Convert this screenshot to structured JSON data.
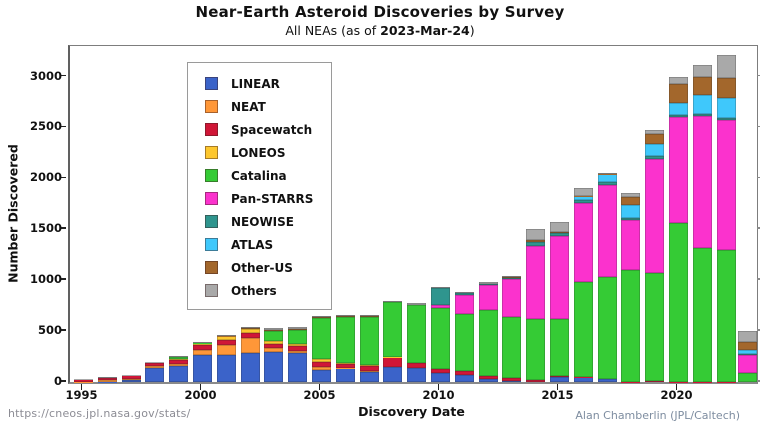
{
  "header": {
    "title": "Near-Earth Asteroid Discoveries by Survey",
    "subtitle_prefix": "All NEAs (as of ",
    "subtitle_date": "2023-Mar-24",
    "subtitle_suffix": ")"
  },
  "footer": {
    "source_url": "https://cneos.jpl.nasa.gov/stats/",
    "credit": "Alan Chamberlin (JPL/Caltech)"
  },
  "chart_data": {
    "type": "bar",
    "stacked": true,
    "title": "Near-Earth Asteroid Discoveries by Survey",
    "subtitle": "All NEAs (as of 2023-Mar-24)",
    "xlabel": "Discovery Date",
    "ylabel": "Number Discovered",
    "grid": false,
    "legend_position": "upper-left-inside",
    "ylim": [
      0,
      3300
    ],
    "yticks": [
      0,
      500,
      1000,
      1500,
      2000,
      2500,
      3000
    ],
    "xticks": [
      1995,
      2000,
      2005,
      2010,
      2015,
      2020
    ],
    "categories": [
      1995,
      1996,
      1997,
      1998,
      1999,
      2000,
      2001,
      2002,
      2003,
      2004,
      2005,
      2006,
      2007,
      2008,
      2009,
      2010,
      2011,
      2012,
      2013,
      2014,
      2015,
      2016,
      2017,
      2018,
      2019,
      2020,
      2021,
      2022,
      2023
    ],
    "series": [
      {
        "name": "LINEAR",
        "color": "#3b63c9",
        "values": [
          0,
          5,
          18,
          135,
          155,
          270,
          270,
          285,
          290,
          285,
          120,
          135,
          100,
          150,
          135,
          90,
          70,
          30,
          10,
          0,
          45,
          45,
          25,
          0,
          0,
          0,
          0,
          0,
          0
        ]
      },
      {
        "name": "NEAT",
        "color": "#ff9738",
        "values": [
          3,
          10,
          15,
          20,
          22,
          45,
          95,
          145,
          40,
          20,
          25,
          5,
          10,
          0,
          0,
          0,
          0,
          0,
          0,
          0,
          0,
          0,
          0,
          0,
          0,
          0,
          0,
          0,
          0
        ]
      },
      {
        "name": "Spacewatch",
        "color": "#d01637",
        "values": [
          25,
          27,
          32,
          32,
          38,
          45,
          45,
          55,
          45,
          45,
          55,
          35,
          45,
          95,
          55,
          35,
          35,
          25,
          25,
          20,
          10,
          5,
          0,
          5,
          10,
          5,
          5,
          5,
          0
        ]
      },
      {
        "name": "LONEOS",
        "color": "#fdc72e",
        "values": [
          0,
          0,
          0,
          5,
          10,
          20,
          40,
          40,
          30,
          20,
          25,
          10,
          8,
          5,
          0,
          0,
          0,
          0,
          0,
          0,
          0,
          0,
          0,
          0,
          0,
          0,
          0,
          0,
          0
        ]
      },
      {
        "name": "Catalina",
        "color": "#35cb35",
        "values": [
          0,
          0,
          0,
          0,
          20,
          5,
          0,
          0,
          95,
          145,
          405,
          455,
          480,
          535,
          565,
          605,
          565,
          650,
          600,
          600,
          565,
          930,
          1005,
          1095,
          1060,
          1555,
          1315,
          1290,
          90
        ]
      },
      {
        "name": "Pan-STARRS",
        "color": "#fb32cd",
        "values": [
          0,
          0,
          0,
          0,
          0,
          0,
          0,
          0,
          0,
          0,
          0,
          0,
          0,
          0,
          0,
          25,
          180,
          245,
          380,
          715,
          810,
          780,
          905,
          490,
          1125,
          1045,
          1290,
          1280,
          180
        ]
      },
      {
        "name": "NEOWISE",
        "color": "#2f958e",
        "values": [
          0,
          0,
          0,
          0,
          0,
          0,
          0,
          0,
          0,
          0,
          0,
          0,
          0,
          0,
          0,
          165,
          20,
          15,
          10,
          40,
          35,
          30,
          25,
          20,
          25,
          20,
          20,
          15,
          5
        ]
      },
      {
        "name": "ATLAS",
        "color": "#3fc8fb",
        "values": [
          0,
          0,
          0,
          0,
          0,
          0,
          0,
          0,
          0,
          0,
          0,
          0,
          0,
          0,
          0,
          0,
          0,
          0,
          0,
          0,
          0,
          35,
          80,
          125,
          115,
          115,
          185,
          195,
          40
        ]
      },
      {
        "name": "Other-US",
        "color": "#a3672c",
        "values": [
          0,
          0,
          3,
          0,
          0,
          0,
          5,
          5,
          10,
          10,
          5,
          5,
          5,
          0,
          0,
          0,
          0,
          0,
          5,
          15,
          10,
          5,
          5,
          85,
          105,
          185,
          185,
          205,
          75
        ]
      },
      {
        "name": "Others",
        "color": "#a9a9a9",
        "values": [
          5,
          3,
          5,
          5,
          8,
          5,
          10,
          15,
          20,
          15,
          10,
          10,
          12,
          15,
          22,
          15,
          15,
          20,
          15,
          110,
          95,
          75,
          12,
          35,
          35,
          75,
          115,
          220,
          115
        ]
      }
    ]
  }
}
